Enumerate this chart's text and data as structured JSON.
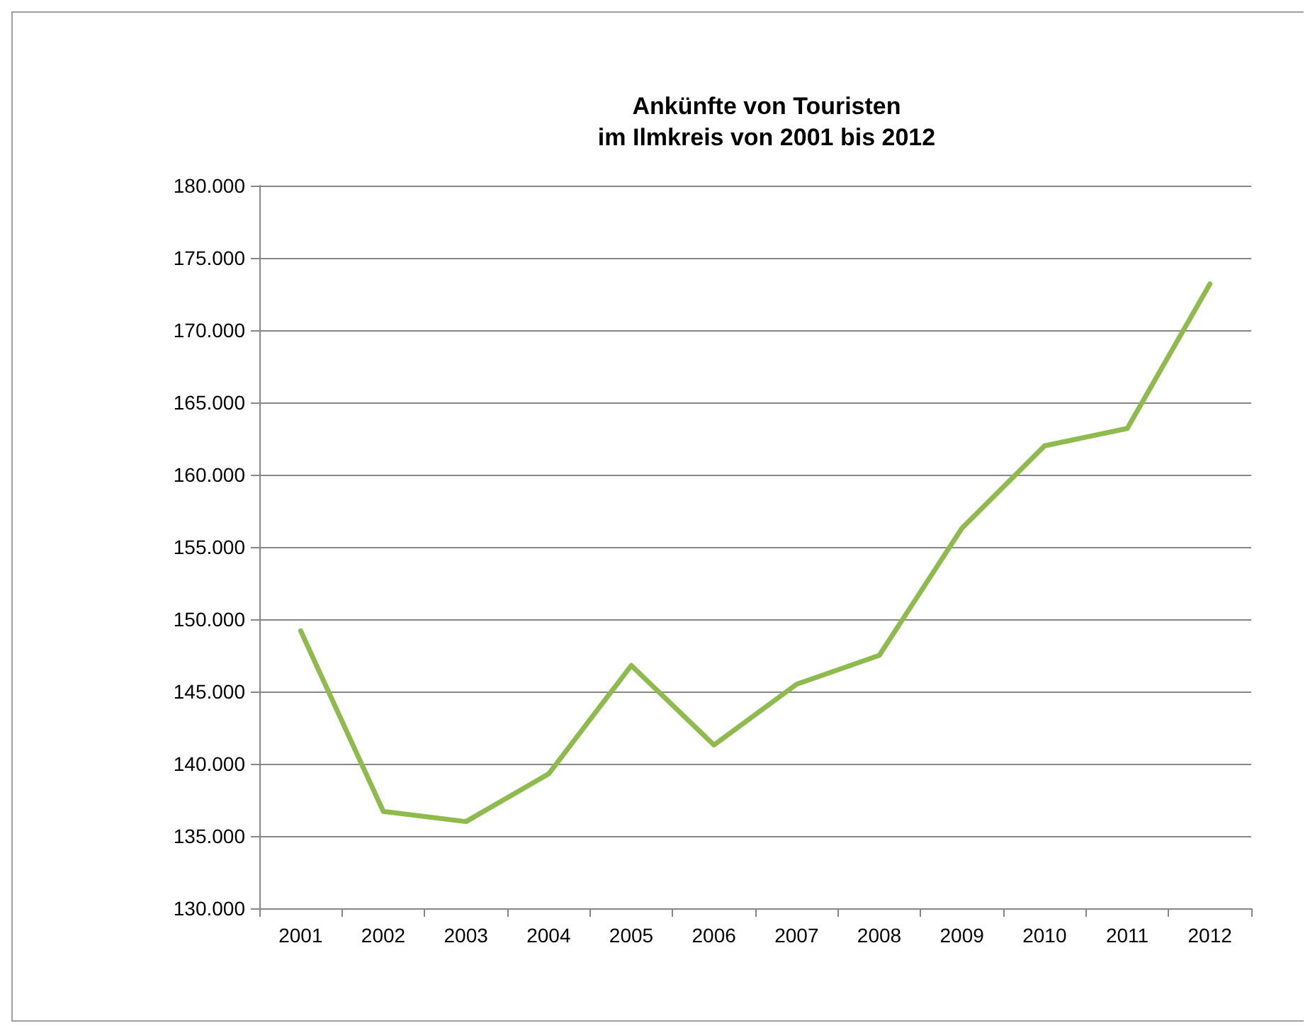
{
  "chart_data": {
    "type": "line",
    "title": "Ankünfte von Touristen\nim Ilmkreis von 2001 bis 2012",
    "categories": [
      "2001",
      "2002",
      "2003",
      "2004",
      "2005",
      "2006",
      "2007",
      "2008",
      "2009",
      "2010",
      "2011",
      "2012"
    ],
    "series": [
      {
        "color": "#8fbb4e",
        "values": [
          149200,
          136700,
          136000,
          139300,
          146800,
          141300,
          145500,
          147500,
          156300,
          162000,
          163200,
          173200
        ]
      }
    ],
    "ylim": [
      130000,
      180000
    ],
    "yticks": [
      {
        "value": 130000,
        "label": "130.000"
      },
      {
        "value": 135000,
        "label": "135.000"
      },
      {
        "value": 140000,
        "label": "140.000"
      },
      {
        "value": 145000,
        "label": "145.000"
      },
      {
        "value": 150000,
        "label": "150.000"
      },
      {
        "value": 155000,
        "label": "155.000"
      },
      {
        "value": 160000,
        "label": "160.000"
      },
      {
        "value": 165000,
        "label": "165.000"
      },
      {
        "value": 170000,
        "label": "170.000"
      },
      {
        "value": 175000,
        "label": "175.000"
      },
      {
        "value": 180000,
        "label": "180.000"
      }
    ],
    "grid": "y",
    "marker": "none",
    "line_style": "solid"
  }
}
